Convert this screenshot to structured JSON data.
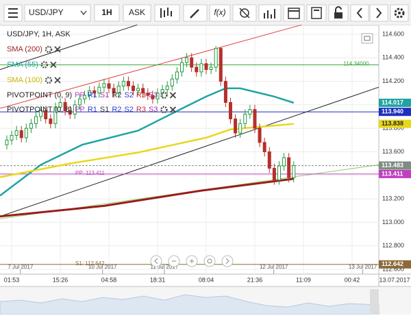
{
  "toolbar": {
    "symbol": "USD/JPY",
    "period": "1H",
    "price": "ASK",
    "fx": "f(x)"
  },
  "chart_data": {
    "type": "candlestick",
    "title": "USD/JPY, 1H, ASK",
    "up_color": "#1e9a3c",
    "down_color": "#b5302a",
    "grid": true,
    "xlim": [
      -1.4,
      76.5
    ],
    "ylim": [
      112.559,
      114.676
    ],
    "xticks": [
      {
        "value": 1,
        "label": "01:53"
      },
      {
        "value": 11,
        "label": "15:26"
      },
      {
        "value": 21,
        "label": "04:58"
      },
      {
        "value": 31,
        "label": "18:31"
      },
      {
        "value": 41,
        "label": "08:04"
      },
      {
        "value": 51,
        "label": "21:36"
      },
      {
        "value": 61,
        "label": "11:09"
      },
      {
        "value": 71,
        "label": "00:42"
      }
    ],
    "x_end_label": "13.07.2017",
    "date_ticks": [
      {
        "value": 2.8,
        "label": "7 Jul 2017"
      },
      {
        "value": 19.7,
        "label": "10 Jul 2017"
      },
      {
        "value": 32.4,
        "label": "11 Jul 2017"
      },
      {
        "value": 54.9,
        "label": "12 Jul 2017"
      },
      {
        "value": 73.2,
        "label": "13 Jul 2017"
      }
    ],
    "yticks": [
      {
        "value": 112.6,
        "label": "112.600"
      },
      {
        "value": 112.8,
        "label": "112.800"
      },
      {
        "value": 113.0,
        "label": "113.000"
      },
      {
        "value": 113.2,
        "label": "113.200"
      },
      {
        "value": 113.4,
        "label": "113.400"
      },
      {
        "value": 113.6,
        "label": "113.600"
      },
      {
        "value": 113.8,
        "label": "113.800"
      },
      {
        "value": 114.0,
        "label": "114.000"
      },
      {
        "value": 114.2,
        "label": "114.200"
      },
      {
        "value": 114.4,
        "label": "114.400"
      },
      {
        "value": 114.6,
        "label": "114.600"
      }
    ],
    "open": [
      113.66,
      113.7,
      113.74,
      113.78,
      113.72,
      113.8,
      113.84,
      113.9,
      113.95,
      113.88,
      113.84,
      113.98,
      114.02,
      113.95,
      113.92,
      114.0,
      114.05,
      114.08,
      114.12,
      114.1,
      114.15,
      114.18,
      114.14,
      114.1,
      114.16,
      114.2,
      114.16,
      114.12,
      114.14,
      114.1,
      114.08,
      114.05,
      114.1,
      114.13,
      114.16,
      114.22,
      114.28,
      114.36,
      114.4,
      114.32,
      114.28,
      114.35,
      114.3,
      114.32,
      114.48,
      114.2,
      114.02,
      113.88,
      113.76,
      113.84,
      113.92,
      113.96,
      113.8,
      113.68,
      113.6,
      113.46,
      113.36,
      113.48,
      113.55,
      113.38
    ],
    "high": [
      113.74,
      113.78,
      113.82,
      113.82,
      113.84,
      113.88,
      113.94,
      113.99,
      113.99,
      113.92,
      114.02,
      114.06,
      114.06,
      113.99,
      114.04,
      114.09,
      114.12,
      114.16,
      114.16,
      114.19,
      114.22,
      114.22,
      114.18,
      114.2,
      114.24,
      114.24,
      114.2,
      114.18,
      114.18,
      114.14,
      114.12,
      114.14,
      114.17,
      114.2,
      114.26,
      114.32,
      114.4,
      114.44,
      114.44,
      114.36,
      114.39,
      114.39,
      114.36,
      114.5,
      114.49,
      114.24,
      114.06,
      113.92,
      113.88,
      113.96,
      114.0,
      114.0,
      113.84,
      113.72,
      113.64,
      113.5,
      113.52,
      113.59,
      113.59,
      113.52
    ],
    "low": [
      113.62,
      113.66,
      113.7,
      113.68,
      113.68,
      113.76,
      113.8,
      113.86,
      113.84,
      113.8,
      113.8,
      113.94,
      113.91,
      113.88,
      113.88,
      113.96,
      114.01,
      114.04,
      114.06,
      114.06,
      114.11,
      114.1,
      114.06,
      114.06,
      114.12,
      114.12,
      114.08,
      114.08,
      114.06,
      114.04,
      114.01,
      114.01,
      114.06,
      114.09,
      114.12,
      114.18,
      114.24,
      114.32,
      114.28,
      114.24,
      114.24,
      114.26,
      114.26,
      114.28,
      114.16,
      113.98,
      113.84,
      113.72,
      113.72,
      113.8,
      113.88,
      113.76,
      113.64,
      113.56,
      113.42,
      113.32,
      113.32,
      113.44,
      113.34,
      113.34
    ],
    "close": [
      113.7,
      113.74,
      113.78,
      113.72,
      113.8,
      113.84,
      113.9,
      113.95,
      113.88,
      113.84,
      113.98,
      114.02,
      113.95,
      113.92,
      114.0,
      114.05,
      114.08,
      114.12,
      114.1,
      114.15,
      114.18,
      114.14,
      114.1,
      114.16,
      114.2,
      114.16,
      114.12,
      114.14,
      114.1,
      114.08,
      114.05,
      114.1,
      114.13,
      114.16,
      114.22,
      114.28,
      114.36,
      114.4,
      114.32,
      114.28,
      114.35,
      114.3,
      114.32,
      114.48,
      114.2,
      114.02,
      113.88,
      113.76,
      113.84,
      113.92,
      113.96,
      113.8,
      113.68,
      113.6,
      113.46,
      113.36,
      113.48,
      113.55,
      113.38,
      113.483
    ],
    "indicators": [
      {
        "name": "SMA (200)",
        "color": "#9b1c1c",
        "x": [
          -1.4,
          20,
          40,
          59
        ],
        "values": [
          113.05,
          113.14,
          113.27,
          113.37
        ],
        "tag": false
      },
      {
        "name": "SMA (55)",
        "color": "#1fa3a3",
        "x": [
          -1.4,
          7,
          15.5,
          27,
          36.6,
          41,
          45,
          48,
          55,
          59
        ],
        "values": [
          113.227,
          113.49,
          113.66,
          113.78,
          113.98,
          114.07,
          114.14,
          114.14,
          114.07,
          114.017
        ],
        "tag": true
      },
      {
        "name": "SMA (100)",
        "color": "#e8d81c",
        "x": [
          -1.4,
          13,
          27,
          41,
          46,
          59
        ],
        "values": [
          113.384,
          113.5,
          113.594,
          113.72,
          113.79,
          113.838
        ],
        "tag": true
      }
    ],
    "trendlines": [
      {
        "color": "#e04040",
        "x": [
          -1.4,
          60.6
        ],
        "values": [
          113.97,
          114.68
        ]
      },
      {
        "color": "#222222",
        "x": [
          -1.4,
          26.8
        ],
        "values": [
          114.3,
          114.68
        ]
      },
      {
        "color": "#222222",
        "x": [
          -1.4,
          76.5
        ],
        "values": [
          113.05,
          114.15
        ]
      },
      {
        "color": "#8fd16a",
        "x": [
          -1.4,
          76.5
        ],
        "values": [
          113.03,
          113.49
        ]
      }
    ],
    "price_lines": [
      {
        "value": 114.34,
        "label": "114.34000",
        "color": "#3aaa3a",
        "tag": false
      },
      {
        "value": 113.94,
        "value_label": "113.940",
        "color": "#1f2fbf",
        "tag": true
      },
      {
        "value": 113.411,
        "label": "PP: 113.411",
        "color": "#c040c0",
        "tag": true
      },
      {
        "value": 112.642,
        "label": "S1: 112.642",
        "color": "#8b6a3a",
        "tag": true
      },
      {
        "value": 113.483,
        "color": "#7f8c80",
        "tag": true,
        "dashed": true
      }
    ],
    "pivots": [
      {
        "name": "PIVOTPOINT (0, 9)",
        "levels": [
          {
            "name": "PP",
            "color": "#c040c0"
          },
          {
            "name": "R1",
            "color": "#2b3fd0"
          },
          {
            "name": "S1",
            "color": "#a030a0"
          },
          {
            "name": "R2",
            "color": "#333333"
          },
          {
            "name": "S2",
            "color": "#2b3fd0"
          },
          {
            "name": "R3",
            "color": "#c03030"
          },
          {
            "name": "S3",
            "color": "#a030a0"
          }
        ]
      },
      {
        "name": "PIVOTPOINT (0, 8)",
        "levels": [
          {
            "name": "PP",
            "color": "#c040c0"
          },
          {
            "name": "R1",
            "color": "#2b3fd0"
          },
          {
            "name": "S1",
            "color": "#333333"
          },
          {
            "name": "R2",
            "color": "#2b3fd0"
          },
          {
            "name": "S2",
            "color": "#2b3fd0"
          },
          {
            "name": "R3",
            "color": "#c03030"
          },
          {
            "name": "S3",
            "color": "#a030a0"
          }
        ]
      }
    ]
  }
}
